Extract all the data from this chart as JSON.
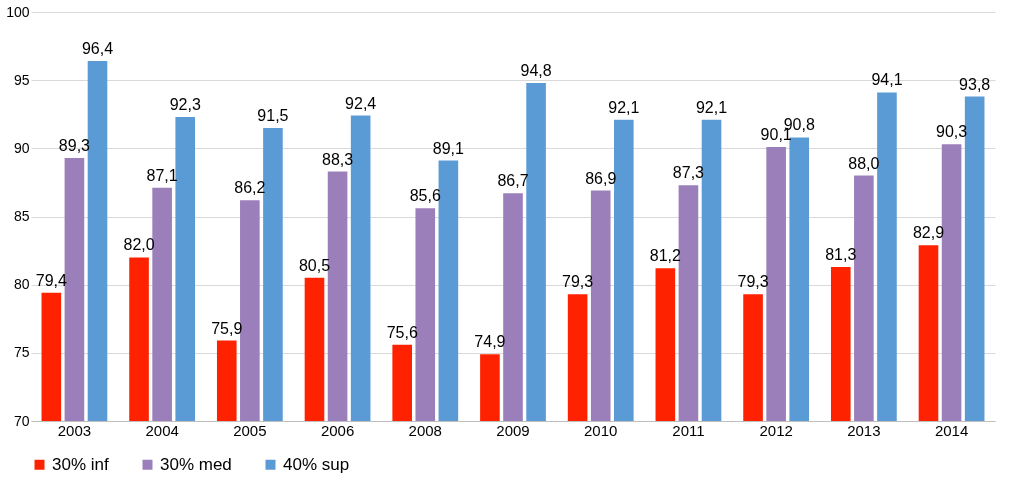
{
  "chart_data": {
    "type": "bar",
    "categories": [
      "2003",
      "2004",
      "2005",
      "2006",
      "2008",
      "2009",
      "2010",
      "2011",
      "2012",
      "2013",
      "2014"
    ],
    "series": [
      {
        "name": "30% inf",
        "color": "#ff2200",
        "values": [
          79.4,
          82.0,
          75.9,
          80.5,
          75.6,
          74.9,
          79.3,
          81.2,
          79.3,
          81.3,
          82.9
        ],
        "value_labels": [
          "79,4",
          "82,0",
          "75,9",
          "80,5",
          "75,6",
          "74,9",
          "79,3",
          "81,2",
          "79,3",
          "81,3",
          "82,9"
        ]
      },
      {
        "name": "30% med",
        "color": "#9b7fbb",
        "values": [
          89.3,
          87.1,
          86.2,
          88.3,
          85.6,
          86.7,
          86.9,
          87.3,
          90.1,
          88.0,
          90.3
        ],
        "value_labels": [
          "89,3",
          "87,1",
          "86,2",
          "88,3",
          "85,6",
          "86,7",
          "86,9",
          "87,3",
          "90,1",
          "88,0",
          "90,3"
        ]
      },
      {
        "name": "40% sup",
        "color": "#5b9bd5",
        "values": [
          96.4,
          92.3,
          91.5,
          92.4,
          89.1,
          94.8,
          92.1,
          92.1,
          90.8,
          94.1,
          93.8
        ],
        "value_labels": [
          "96,4",
          "92,3",
          "91,5",
          "92,4",
          "89,1",
          "94,8",
          "92,1",
          "92,1",
          "90,8",
          "94,1",
          "93,8"
        ]
      }
    ],
    "ylim": [
      70,
      100
    ],
    "yticks": [
      70,
      75,
      80,
      85,
      90,
      95,
      100
    ],
    "grid": "y",
    "legend": "bottom"
  }
}
